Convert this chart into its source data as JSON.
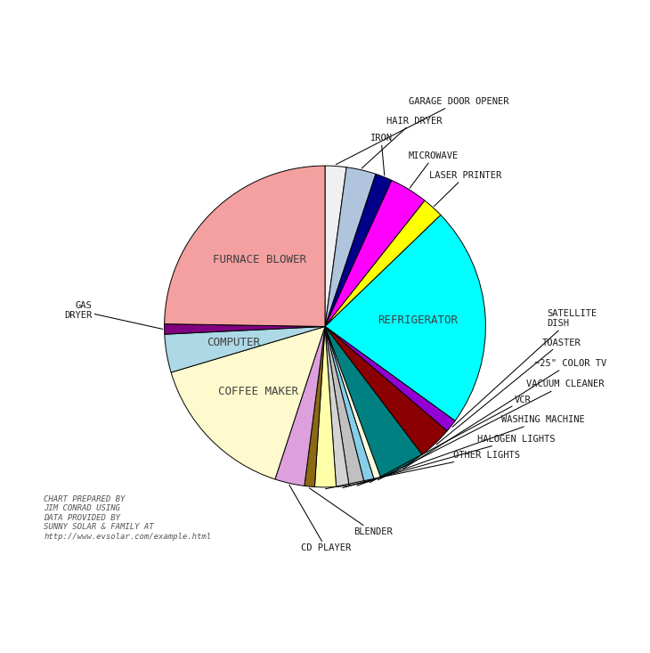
{
  "slices": [
    {
      "label": "GARAGE DOOR OPENER",
      "value": 2.5,
      "color": "#F0F0F0",
      "label_inside": false
    },
    {
      "label": "HAIR DRYER",
      "value": 3.5,
      "color": "#B0C4DE",
      "label_inside": false
    },
    {
      "label": "IRON",
      "value": 2.0,
      "color": "#00008B",
      "label_inside": false
    },
    {
      "label": "MICROWAVE",
      "value": 4.5,
      "color": "#FF00FF",
      "label_inside": false
    },
    {
      "label": "LASER PRINTER",
      "value": 2.5,
      "color": "#FFFF00",
      "label_inside": false
    },
    {
      "label": "REFRIGERATOR",
      "value": 26.0,
      "color": "#00FFFF",
      "label_inside": true
    },
    {
      "label": "SATELLITE\nDISH",
      "value": 1.5,
      "color": "#9400D3",
      "label_inside": false
    },
    {
      "label": "TOASTER",
      "value": 4.0,
      "color": "#8B0000",
      "label_inside": false
    },
    {
      "label": "~25\" COLOR TV",
      "value": 5.5,
      "color": "#008080",
      "label_inside": false
    },
    {
      "label": "VACUUM CLEANER",
      "value": 0.8,
      "color": "#FFFFE0",
      "label_inside": false
    },
    {
      "label": "VCR",
      "value": 1.2,
      "color": "#87CEEB",
      "label_inside": false
    },
    {
      "label": "WASHING MACHINE",
      "value": 1.8,
      "color": "#C0C0C0",
      "label_inside": false
    },
    {
      "label": "HALOGEN LIGHTS",
      "value": 1.5,
      "color": "#D3D3D3",
      "label_inside": false
    },
    {
      "label": "OTHER LIGHTS",
      "value": 2.5,
      "color": "#FFFFAA",
      "label_inside": false
    },
    {
      "label": "BLENDER",
      "value": 1.2,
      "color": "#8B6914",
      "label_inside": false
    },
    {
      "label": "CD PLAYER",
      "value": 3.5,
      "color": "#DDA0DD",
      "label_inside": false
    },
    {
      "label": "COFFEE MAKER",
      "value": 18.0,
      "color": "#FFFACD",
      "label_inside": true
    },
    {
      "label": "COMPUTER",
      "value": 4.5,
      "color": "#ADD8E6",
      "label_inside": true
    },
    {
      "label": "GAS\nDRYER",
      "value": 1.2,
      "color": "#800080",
      "label_inside": false
    },
    {
      "label": "FURNACE BLOWER",
      "value": 29.0,
      "color": "#F4A0A0",
      "label_inside": true
    }
  ],
  "annotation_lines": [
    "CHART PREPARED BY",
    "JIM CONRAD USING",
    "DATA PROVIDED BY",
    "SUNNY SOLAR & FAMILY AT",
    "http://www.evsolar.com/example.html"
  ],
  "background_color": "#ffffff"
}
